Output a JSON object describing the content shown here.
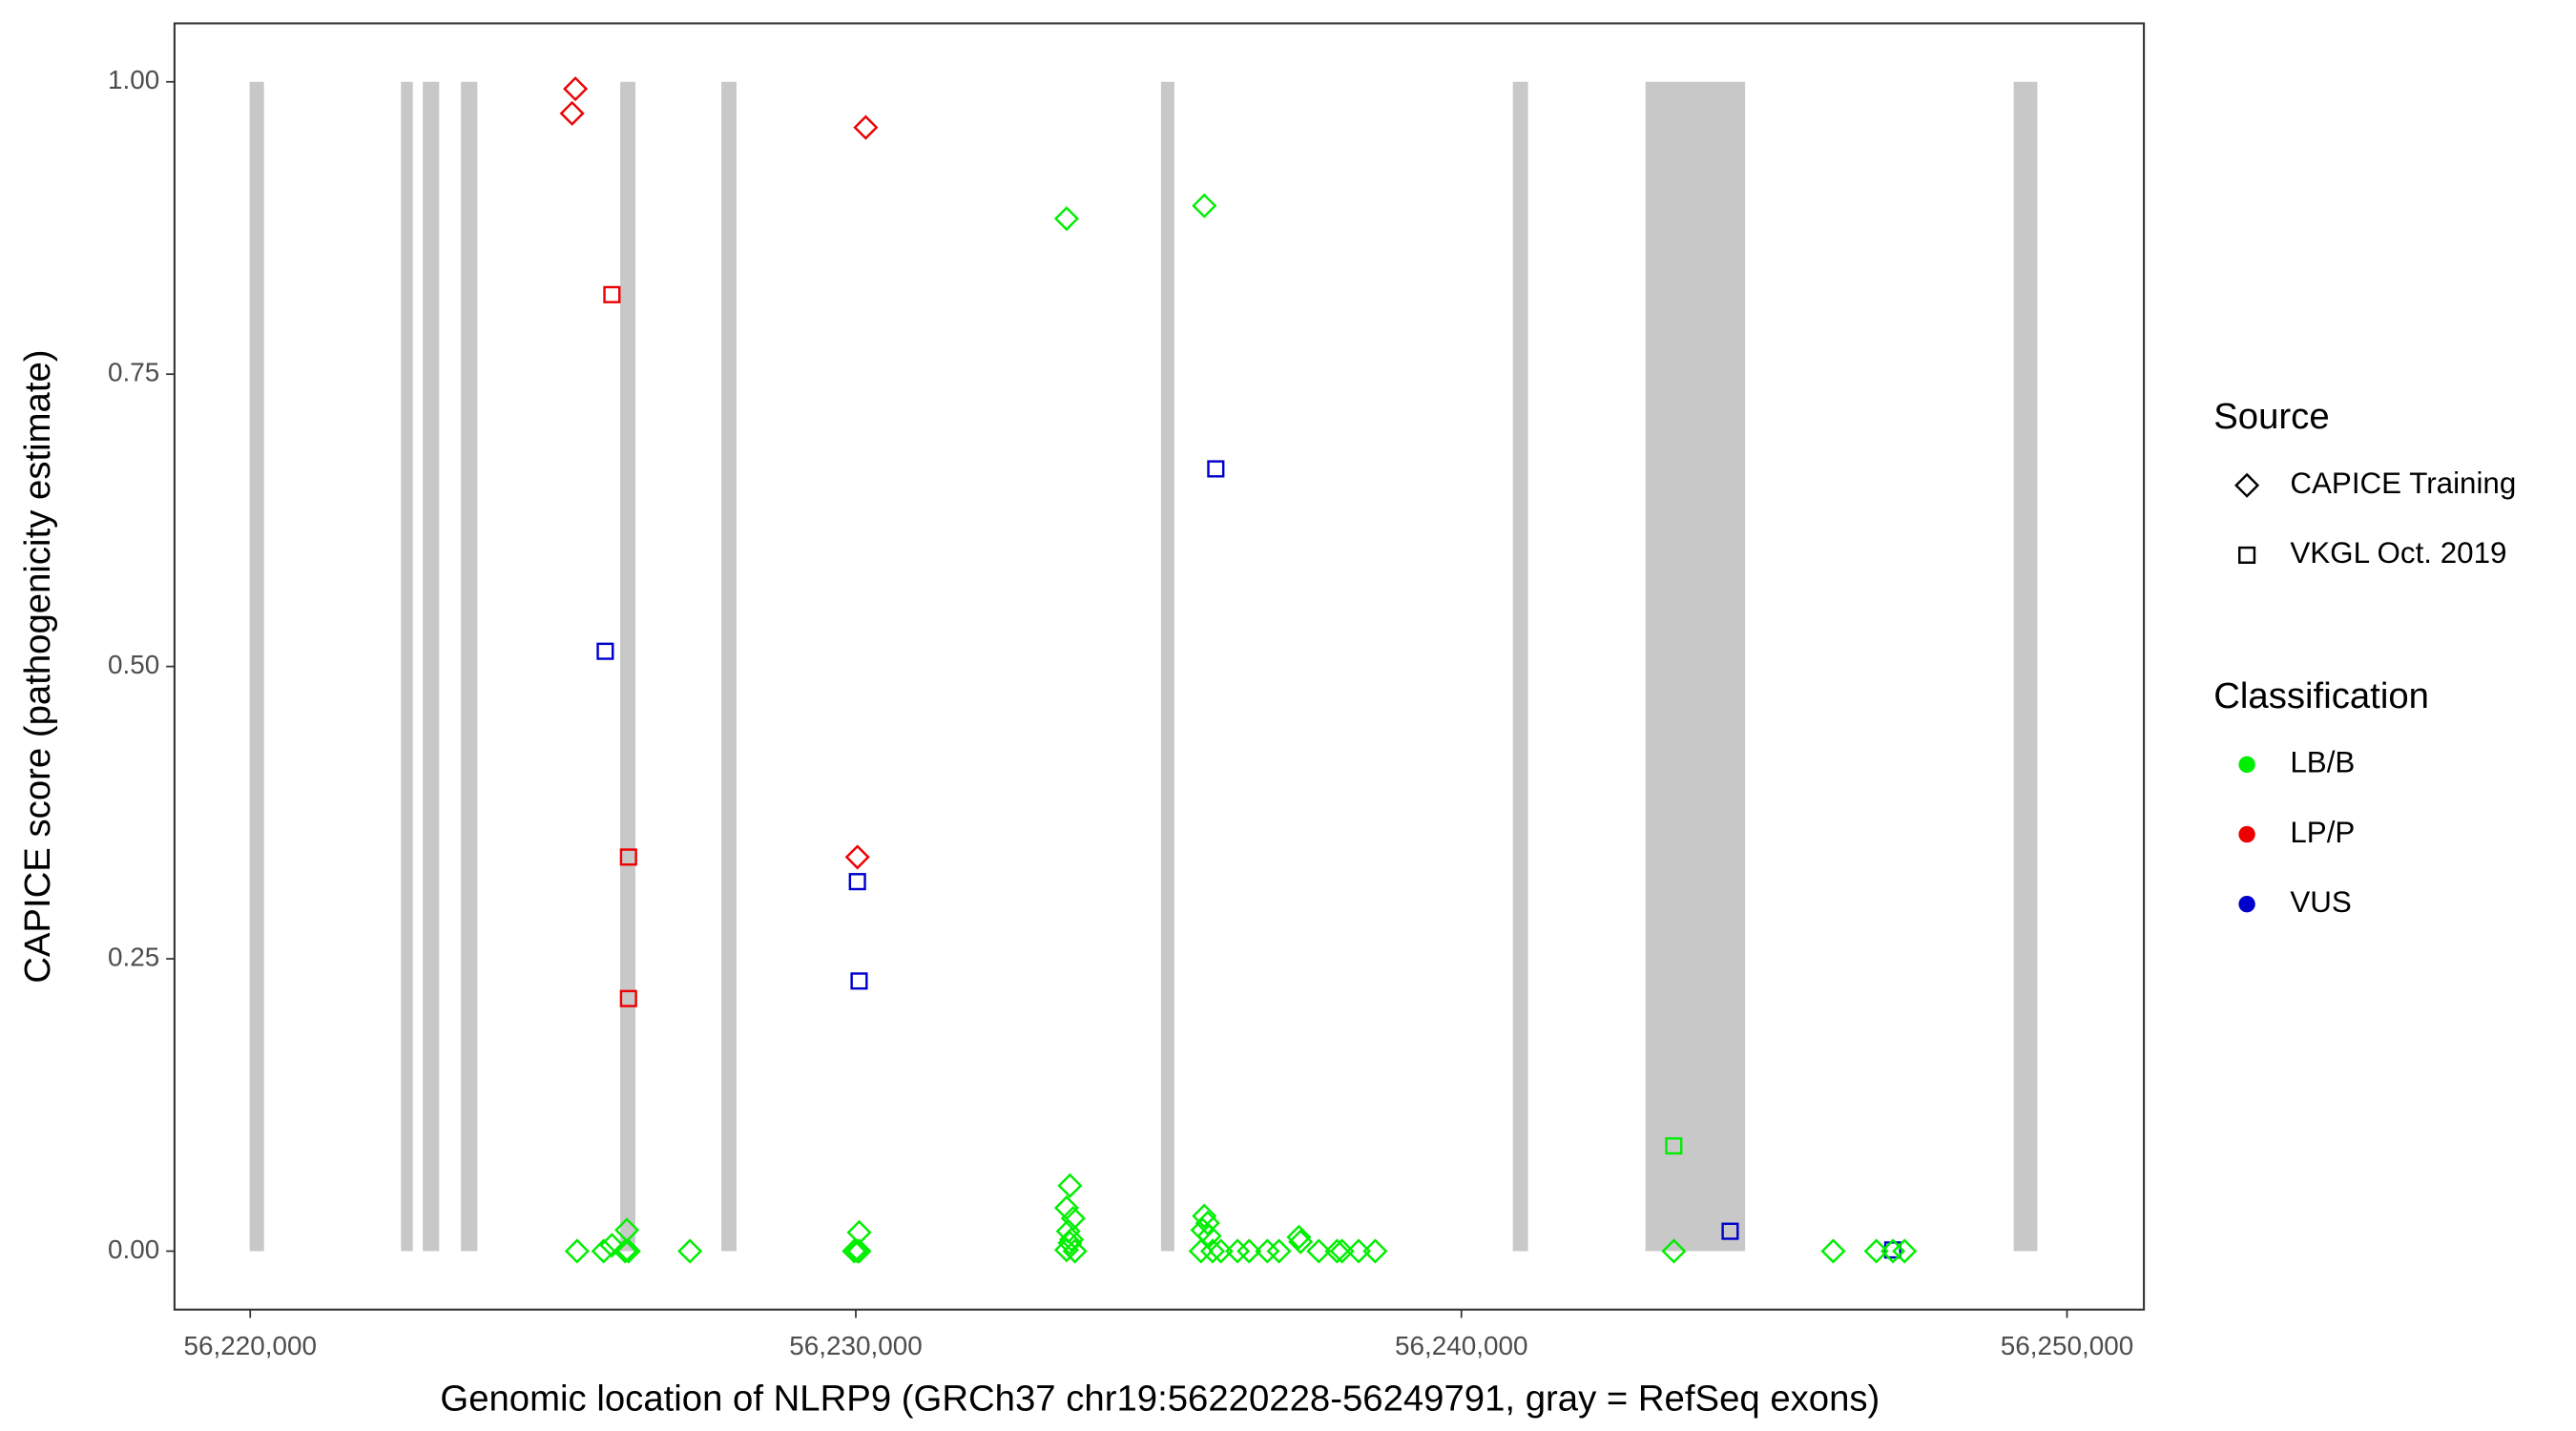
{
  "chart_data": {
    "type": "scatter",
    "x_label": "Genomic location of NLRP9 (GRCh37 chr19:56220228-56249791, gray = RefSeq exons)",
    "y_label": "CAPICE score (pathogenicity estimate)",
    "xlim": [
      56218750,
      56251270
    ],
    "ylim": [
      -0.05,
      1.05
    ],
    "xticks": [
      {
        "value": 56220000,
        "label": "56,220,000"
      },
      {
        "value": 56230000,
        "label": "56,230,000"
      },
      {
        "value": 56240000,
        "label": "56,240,000"
      },
      {
        "value": 56250000,
        "label": "56,250,000"
      }
    ],
    "yticks": [
      {
        "value": 0,
        "label": "0.00"
      },
      {
        "value": 0.25,
        "label": "0.25"
      },
      {
        "value": 0.5,
        "label": "0.50"
      },
      {
        "value": 0.75,
        "label": "0.75"
      },
      {
        "value": 1,
        "label": "1.00"
      }
    ],
    "exon_color": "#c8c8c8",
    "exon_range": [
      0,
      1
    ],
    "exons": [
      [
        56219990,
        56220228
      ],
      [
        56222490,
        56222685
      ],
      [
        56222850,
        56223120
      ],
      [
        56223480,
        56223750
      ],
      [
        56226110,
        56226360
      ],
      [
        56227780,
        56228030
      ],
      [
        56235040,
        56235260
      ],
      [
        56240850,
        56241100
      ],
      [
        56243040,
        56244685
      ],
      [
        56249120,
        56249510
      ]
    ],
    "legend_shape": {
      "title": "Source",
      "items": [
        {
          "name": "CAPICE Training",
          "shape": "diamond"
        },
        {
          "name": "VKGL Oct. 2019",
          "shape": "square"
        }
      ]
    },
    "legend_color": {
      "title": "Classification",
      "items": [
        {
          "name": "LB/B",
          "color": "#00ee00"
        },
        {
          "name": "LP/P",
          "color": "#ee0000"
        },
        {
          "name": "VUS",
          "color": "#0000cc"
        }
      ]
    },
    "series": [
      {
        "shape": "diamond",
        "color": "#ee0000",
        "x": [
          56225370,
          56225315,
          56230164,
          56230027
        ],
        "values": [
          0.994,
          0.973,
          0.961,
          0.337
        ]
      },
      {
        "shape": "square",
        "color": "#ee0000",
        "x": [
          56225973,
          56226247,
          56226247
        ],
        "values": [
          0.818,
          0.337,
          0.216
        ]
      },
      {
        "shape": "square",
        "color": "#0000cc",
        "x": [
          56225863,
          56230027,
          56230055,
          56235945,
          56244438,
          56247123
        ],
        "values": [
          0.513,
          0.316,
          0.231,
          0.669,
          0.017,
          0.001
        ]
      },
      {
        "shape": "square",
        "color": "#00ee00",
        "x": [
          56243507
        ],
        "values": [
          0.09
        ]
      },
      {
        "shape": "diamond",
        "color": "#00ee00",
        "x": [
          56233481,
          56235755,
          56225398,
          56225836,
          56225973,
          56226192,
          56226247,
          56226220,
          56227261,
          56229974,
          56230028,
          56230056,
          56230056,
          56233536,
          56233481,
          56233590,
          56233508,
          56233563,
          56233536,
          56233481,
          56233618,
          56235755,
          56235810,
          56235728,
          56235837,
          56235700,
          56235892,
          56236029,
          56236303,
          56236495,
          56236796,
          56236988,
          56237317,
          56237344,
          56237646,
          56237947,
          56238029,
          56238303,
          56238577,
          56243509,
          56246140,
          56246852,
          56247126,
          56247318
        ],
        "values": [
          0.883,
          0.894,
          0,
          0,
          0.005,
          0,
          0,
          0.018,
          0,
          0,
          0,
          0,
          0.016,
          0.056,
          0.037,
          0.028,
          0.017,
          0.01,
          0.007,
          0.001,
          0,
          0.03,
          0.024,
          0.018,
          0.013,
          0,
          0,
          0,
          0,
          0,
          0,
          0,
          0.012,
          0.008,
          0,
          0,
          0,
          0,
          0,
          0,
          0,
          0,
          0,
          0
        ]
      }
    ]
  }
}
